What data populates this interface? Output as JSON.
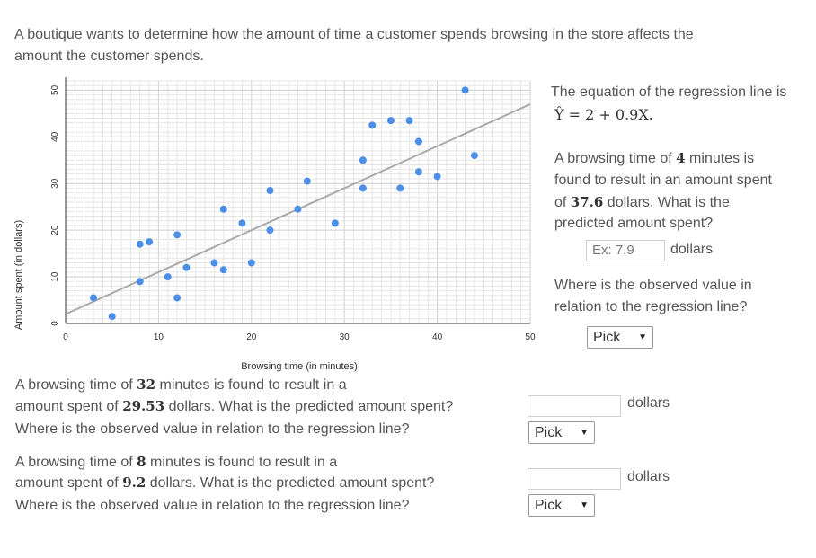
{
  "intro": {
    "line1": "A boutique wants to determine how the amount of time a customer spends browsing in the store affects the",
    "line2": "amount the customer spends."
  },
  "right_panel": {
    "regression_intro": "The equation of the regression line is",
    "regression_eq": "Ŷ = 2 + 0.9X.",
    "q1_a": "A browsing time of ",
    "q1_time": "4",
    "q1_b": " minutes is",
    "q1_c": "found to result in an amount spent",
    "q1_d": "of ",
    "q1_amount": "37.6",
    "q1_e": " dollars. What is the",
    "q1_f": "predicted amount spent?",
    "q1_input_placeholder": "Ex: 7.9",
    "q1_unit": "dollars",
    "q1_obs_a": "Where is the observed value in",
    "q1_obs_b": "relation to the regression line?",
    "q1_select": "Pick"
  },
  "q2": {
    "a": "A browsing time of ",
    "time": "32",
    "b": " minutes is found to result in a",
    "c": "amount spent of ",
    "amount": "29.53",
    "d": " dollars. What is the predicted amount spent?",
    "obs": "Where is the observed value in relation to the regression line?",
    "unit": "dollars",
    "select": "Pick"
  },
  "q3": {
    "a": "A browsing time of ",
    "time": "8",
    "b": " minutes is found to result in a",
    "c": "amount spent of ",
    "amount": "9.2",
    "d": " dollars. What is the predicted amount spent?",
    "obs": "Where is the observed value in relation to the regression line?",
    "unit": "dollars",
    "select": "Pick"
  },
  "chart_data": {
    "type": "scatter",
    "xlabel": "Browsing time (in minutes)",
    "ylabel": "Amount spent (in dollars)",
    "xlim": [
      0,
      50
    ],
    "ylim": [
      0,
      52
    ],
    "x_ticks": [
      0,
      10,
      20,
      30,
      40,
      50
    ],
    "y_ticks": [
      0,
      10,
      20,
      30,
      40,
      50
    ],
    "grid": true,
    "point_color": "#4a8ee8",
    "line_color": "#a9a9a9",
    "regression": {
      "intercept": 2,
      "slope": 0.9
    },
    "points": [
      {
        "x": 3,
        "y": 5.5
      },
      {
        "x": 5,
        "y": 1.5
      },
      {
        "x": 8,
        "y": 9
      },
      {
        "x": 8,
        "y": 17
      },
      {
        "x": 9,
        "y": 17.5
      },
      {
        "x": 11,
        "y": 10
      },
      {
        "x": 12,
        "y": 19
      },
      {
        "x": 12,
        "y": 5.5
      },
      {
        "x": 13,
        "y": 12
      },
      {
        "x": 16,
        "y": 13
      },
      {
        "x": 17,
        "y": 11.5
      },
      {
        "x": 17,
        "y": 24.5
      },
      {
        "x": 19,
        "y": 21.5
      },
      {
        "x": 20,
        "y": 13
      },
      {
        "x": 22,
        "y": 28.5
      },
      {
        "x": 22,
        "y": 20
      },
      {
        "x": 25,
        "y": 24.5
      },
      {
        "x": 26,
        "y": 30.5
      },
      {
        "x": 29,
        "y": 21.5
      },
      {
        "x": 32,
        "y": 35
      },
      {
        "x": 32,
        "y": 29
      },
      {
        "x": 33,
        "y": 42.5
      },
      {
        "x": 35,
        "y": 43.5
      },
      {
        "x": 36,
        "y": 29
      },
      {
        "x": 37,
        "y": 43.5
      },
      {
        "x": 38,
        "y": 39
      },
      {
        "x": 38,
        "y": 32.5
      },
      {
        "x": 40,
        "y": 31.5
      },
      {
        "x": 43,
        "y": 50
      },
      {
        "x": 44,
        "y": 36
      }
    ]
  }
}
